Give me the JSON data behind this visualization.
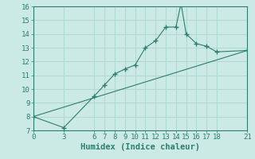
{
  "xlabel": "Humidex (Indice chaleur)",
  "curve_x": [
    0,
    3,
    6,
    7,
    8,
    9,
    10,
    11,
    12,
    13,
    14,
    14.5,
    15,
    16,
    17,
    18,
    21
  ],
  "curve_y": [
    8.0,
    7.2,
    9.5,
    10.3,
    11.1,
    11.45,
    11.75,
    13.0,
    13.5,
    14.5,
    14.5,
    16.2,
    14.0,
    13.3,
    13.1,
    12.7,
    12.8
  ],
  "line_x": [
    0,
    21
  ],
  "line_y": [
    8.0,
    12.8
  ],
  "color": "#2e7d6e",
  "bg_color": "#cceae5",
  "grid_color": "#b0d8d0",
  "xlim": [
    0,
    21
  ],
  "ylim": [
    7,
    16
  ],
  "xticks": [
    0,
    3,
    6,
    7,
    8,
    9,
    10,
    11,
    12,
    13,
    14,
    15,
    16,
    17,
    18,
    21
  ],
  "yticks": [
    7,
    8,
    9,
    10,
    11,
    12,
    13,
    14,
    15,
    16
  ],
  "tick_fontsize": 6.5,
  "xlabel_fontsize": 7.5
}
